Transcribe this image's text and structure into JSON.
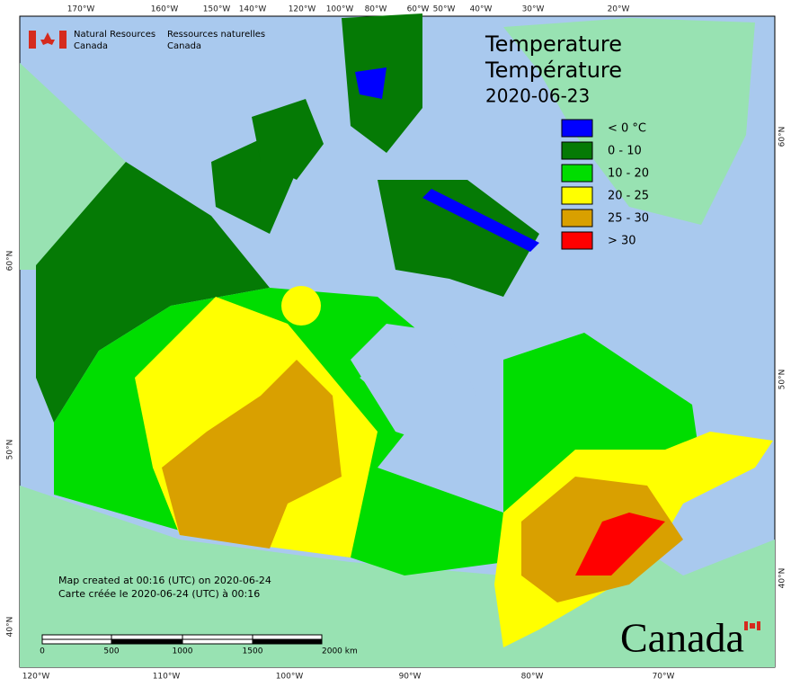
{
  "header": {
    "org_en": [
      "Natural Resources",
      "Canada"
    ],
    "org_fr": [
      "Ressources naturelles",
      "Canada"
    ]
  },
  "title": {
    "lines": [
      "Temperature",
      "Température"
    ],
    "date": "2020-06-23"
  },
  "legend": [
    {
      "label": "< 0 °C",
      "color": "#0000ff"
    },
    {
      "label": "0 - 10",
      "color": "#057a05"
    },
    {
      "label": "10 - 20",
      "color": "#00dd00"
    },
    {
      "label": "20 - 25",
      "color": "#ffff00"
    },
    {
      "label": "25 - 30",
      "color": "#d9a000"
    },
    {
      "label": "> 30",
      "color": "#ff0000"
    }
  ],
  "note": [
    "Map created at 00:16 (UTC) on 2020-06-24",
    "Carte créée le 2020-06-24 (UTC) à 00:16"
  ],
  "scale_bar": [
    "0",
    "500",
    "1000",
    "1500",
    "2000  km"
  ],
  "graticule": {
    "top": [
      "170°W",
      "160°W",
      "150°W",
      "140°W",
      "120°W",
      "100°W",
      "80°W",
      "60°W",
      "50°W",
      "40°W",
      "30°W",
      "20°W"
    ],
    "bottom": [
      "120°W",
      "110°W",
      "100°W",
      "90°W",
      "80°W",
      "70°W"
    ],
    "left": [
      "60°N",
      "50°N",
      "40°N"
    ],
    "right": [
      "60°N",
      "50°N",
      "40°N"
    ]
  },
  "wordmark": "Canada"
}
